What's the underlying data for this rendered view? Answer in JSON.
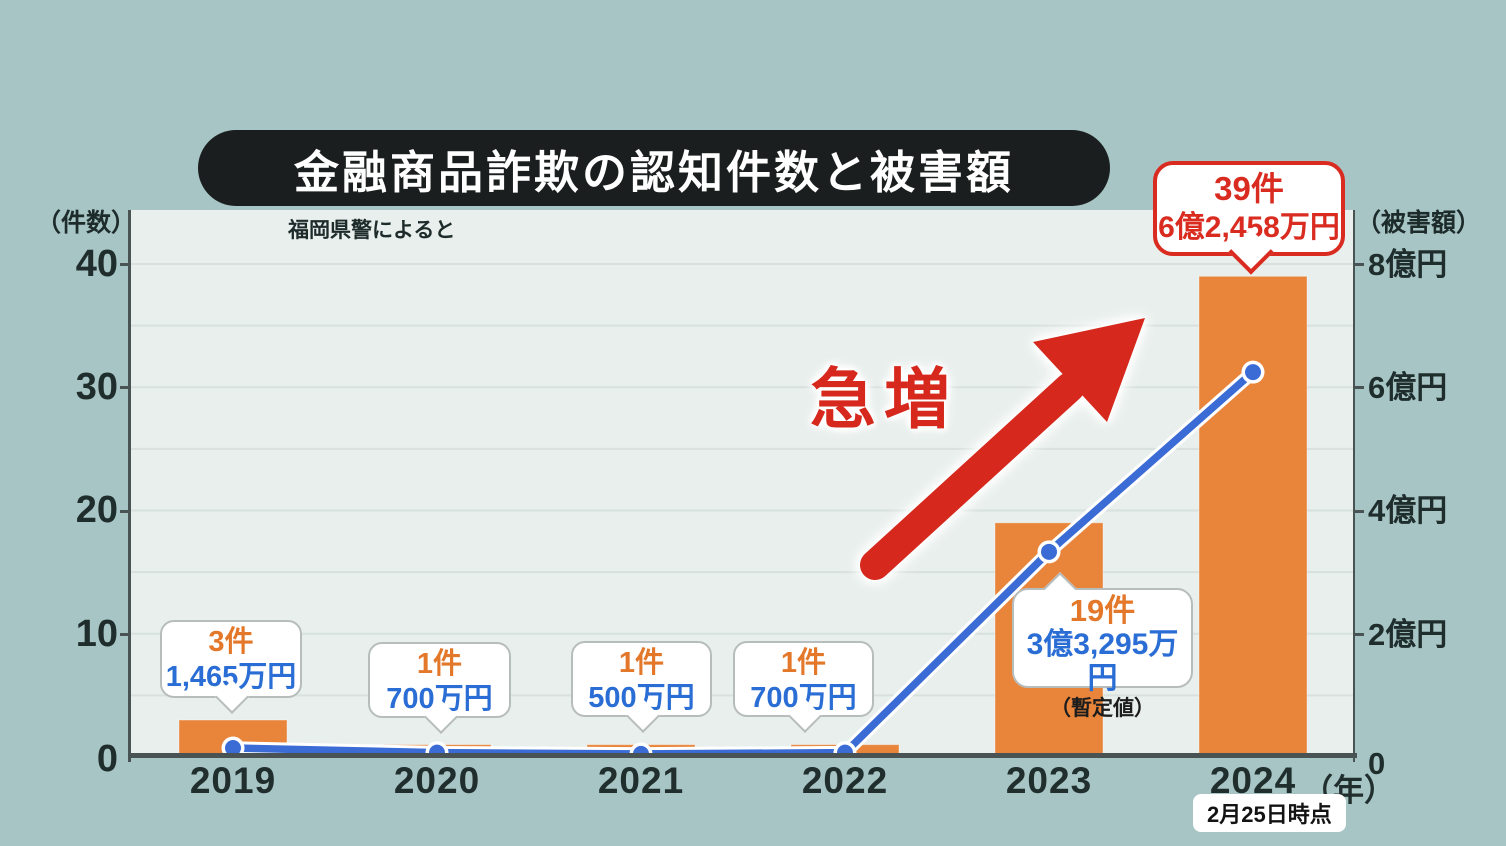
{
  "title": "金融商品詐欺の認知件数と被害額",
  "source_note": "福岡県警によると",
  "left_axis": {
    "unit": "（件数）",
    "ticks": [
      "40",
      "30",
      "20",
      "10",
      "0"
    ]
  },
  "right_axis": {
    "unit": "（被害額）",
    "ticks": [
      "8億円",
      "6億円",
      "4億円",
      "2億円",
      "0"
    ]
  },
  "x_axis": {
    "unit": "（年）",
    "note_2024": "2月25日時点"
  },
  "surge": {
    "label": "急増",
    "color": "#d6281c"
  },
  "colors": {
    "bar": "#e8853b",
    "line": "#3b6cd6",
    "count_text": "#e4782a",
    "amount_text": "#2a6dd4",
    "highlight": "#d92b1f",
    "plot_bg": "#e8efec",
    "page_bg": "#a7c5c5"
  },
  "chart_data": {
    "type": "bar+line",
    "categories": [
      "2019",
      "2020",
      "2021",
      "2022",
      "2023",
      "2024"
    ],
    "series": [
      {
        "name": "認知件数（件数）",
        "type": "bar",
        "axis": "left",
        "ylim": [
          0,
          40
        ],
        "values": [
          3,
          1,
          1,
          1,
          19,
          39
        ],
        "color": "#e8853b"
      },
      {
        "name": "被害額（億円）",
        "type": "line",
        "axis": "right",
        "ylim": [
          0,
          8
        ],
        "values": [
          0.1465,
          0.07,
          0.05,
          0.07,
          3.3295,
          6.2458
        ],
        "color": "#3b6cd6"
      }
    ],
    "grid": "horizontal every 5 cases (1億円)",
    "legend": "none",
    "callouts": [
      {
        "count": "3件",
        "amount": "1,465万円"
      },
      {
        "count": "1件",
        "amount": "700万円"
      },
      {
        "count": "1件",
        "amount": "500万円"
      },
      {
        "count": "1件",
        "amount": "700万円"
      },
      {
        "count": "19件",
        "amount": "3億3,295万円",
        "note": "（暫定値）"
      },
      {
        "count": "39件",
        "amount": "6億2,458万円"
      }
    ]
  }
}
